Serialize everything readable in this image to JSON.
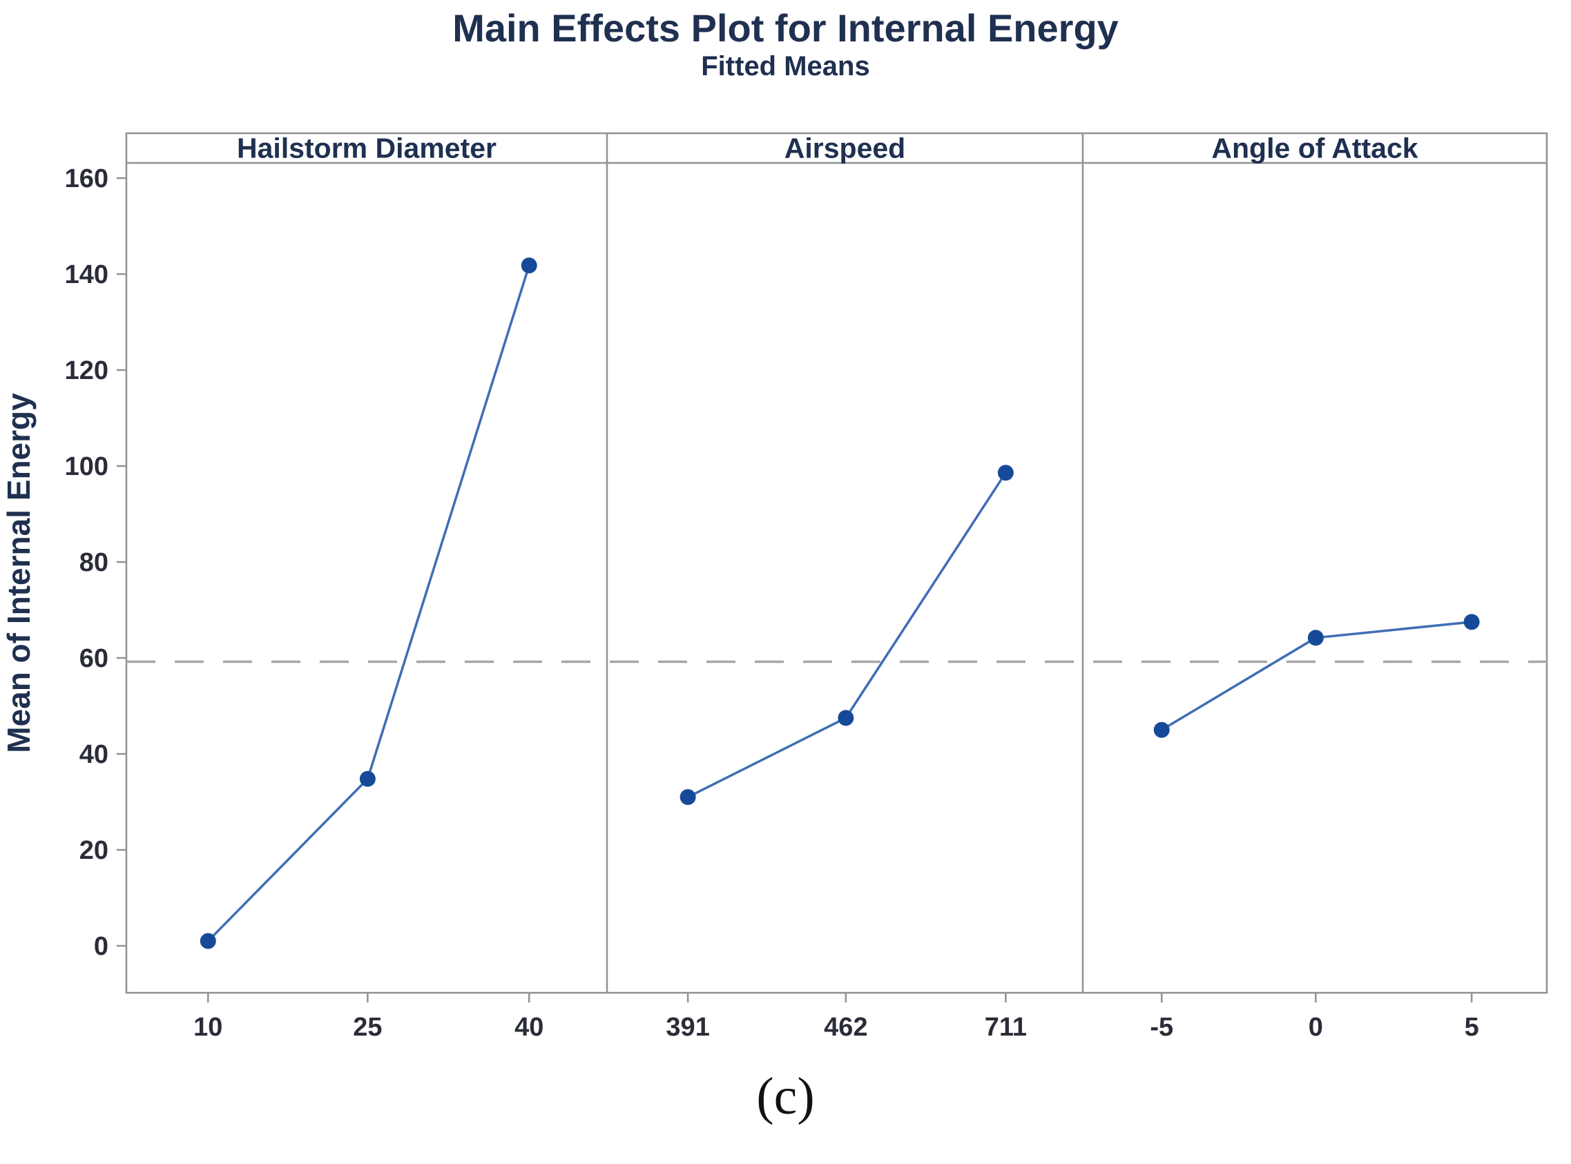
{
  "title": "Main Effects Plot for Internal Energy",
  "subtitle": "Fitted Means",
  "caption": "(c)",
  "chart_data": {
    "type": "line",
    "title": "Main Effects Plot for Internal Energy",
    "subtitle": "Fitted Means",
    "ylabel": "Mean of Internal Energy",
    "ylim": [
      0,
      160
    ],
    "yticks": [
      0,
      20,
      40,
      60,
      80,
      100,
      120,
      140,
      160
    ],
    "grid": false,
    "legend_position": "none",
    "overall_mean_line": 59.2,
    "panels": [
      {
        "label": "Hailstorm Diameter",
        "categories": [
          "10",
          "25",
          "40"
        ],
        "values": [
          1,
          34.8,
          141.8
        ]
      },
      {
        "label": "Airspeed",
        "categories": [
          "391",
          "462",
          "711"
        ],
        "values": [
          31,
          47.5,
          98.6
        ]
      },
      {
        "label": "Angle of Attack",
        "categories": [
          "-5",
          "0",
          "5"
        ],
        "values": [
          45,
          64.2,
          67.5
        ]
      }
    ],
    "colors": {
      "line": "#3f6db5",
      "marker": "#164a99",
      "mean_line": "#a6a6a6",
      "frame": "#8e9196",
      "tick_text": "#2a2d38",
      "heading_text": "#1f3050"
    }
  }
}
